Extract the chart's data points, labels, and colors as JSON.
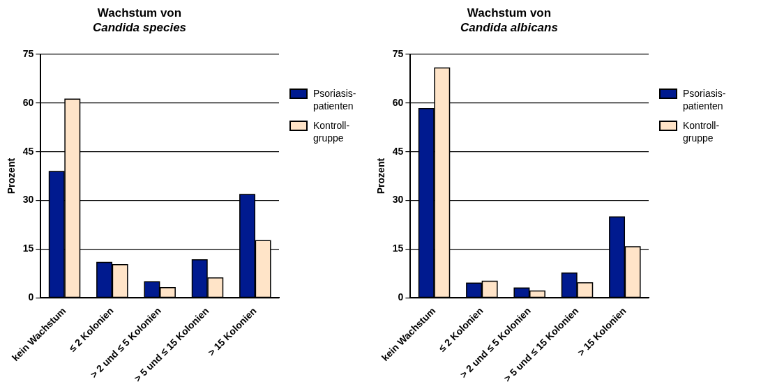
{
  "chart_data": [
    {
      "type": "bar",
      "title": "Wachstum von\nCandida species",
      "ylabel": "Prozent",
      "categories": [
        "kein Wachstum",
        "≤ 2 Kolonien",
        "> 2 und ≤ 5 Kolonien",
        "> 5 und ≤ 15 Kolonien",
        "> 15 Kolonien"
      ],
      "series": [
        {
          "name": "Psoriasis-patienten",
          "color": "#001a8f",
          "values": [
            38.9,
            10.9,
            4.9,
            11.7,
            31.8
          ]
        },
        {
          "name": "Kontroll-gruppe",
          "color": "#ffe4c8",
          "values": [
            61.2,
            10.2,
            3.1,
            6.1,
            17.6
          ]
        }
      ],
      "ylim": [
        0,
        75
      ],
      "yticks": [
        0,
        15,
        30,
        45,
        60,
        75
      ],
      "grid": "y",
      "legend": "top right"
    },
    {
      "type": "bar",
      "title": "Wachstum von\nCandida albicans",
      "ylabel": "Prozent",
      "categories": [
        "kein Wachstum",
        "≤ 2 Kolonien",
        "> 2 und ≤ 5 Kolonien",
        "> 5 und ≤ 15 Kolonien",
        "> 15 Kolonien"
      ],
      "series": [
        {
          "name": "Psoriasis-patienten",
          "color": "#001a8f",
          "values": [
            58.3,
            4.5,
            3.0,
            7.6,
            24.9
          ]
        },
        {
          "name": "Kontroll-gruppe",
          "color": "#ffe4c8",
          "values": [
            70.8,
            5.1,
            2.1,
            4.6,
            15.7
          ]
        }
      ],
      "ylim": [
        0,
        75
      ],
      "yticks": [
        0,
        15,
        30,
        45,
        60,
        75
      ],
      "grid": "y",
      "legend": "top right"
    }
  ]
}
